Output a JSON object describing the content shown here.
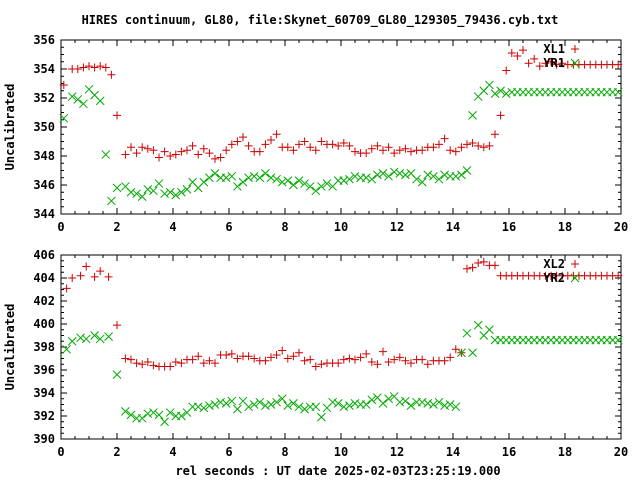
{
  "title": "HIRES continuum, GL80, file:Skynet_60709_GL80_129305_79436.cyb.txt",
  "xlabel": "rel seconds : UT date 2025-02-03T23:25:19.000",
  "colors": {
    "red": "#cc0000",
    "green": "#00aa00"
  },
  "chart_data": [
    {
      "type": "scatter",
      "ylabel": "Uncalibrated",
      "xlim": [
        0,
        20
      ],
      "ylim": [
        344,
        356
      ],
      "xticks": [
        0,
        2,
        4,
        6,
        8,
        10,
        12,
        14,
        16,
        18,
        20
      ],
      "yticks": [
        344,
        346,
        348,
        350,
        352,
        354,
        356
      ],
      "legend_position": "top-right",
      "series": [
        {
          "name": "XL1",
          "marker": "plus",
          "color": "red",
          "x": [
            0.2,
            0.4,
            0.6,
            0.8,
            1.0,
            1.2,
            1.4,
            1.6,
            1.8,
            2.0,
            2.2,
            2.4,
            2.6,
            2.8,
            3.0,
            3.2,
            3.4,
            3.6,
            3.8,
            4.0,
            4.2,
            4.4,
            4.6,
            4.8,
            5.0,
            5.2,
            5.4,
            5.6,
            5.8,
            6.0,
            6.2,
            6.4,
            6.6,
            6.8,
            7.0,
            7.2,
            7.4,
            7.6,
            7.8,
            8.0,
            8.2,
            8.4,
            8.6,
            8.8,
            9.0,
            9.2,
            9.4,
            9.6,
            9.8,
            10.0,
            10.2,
            10.4,
            10.6,
            10.8,
            11.0,
            11.2,
            11.4,
            11.6,
            11.8,
            12.0,
            12.2,
            12.4,
            12.6,
            12.8,
            13.0,
            13.2,
            13.4,
            13.6,
            13.8,
            14.0,
            14.2,
            14.4,
            14.6,
            14.8,
            15.0,
            15.2,
            15.4,
            15.6,
            15.8,
            16.0,
            16.2,
            16.4,
            16.6,
            16.8,
            17.0,
            17.2,
            17.4,
            17.6,
            17.8,
            18.0,
            18.2,
            18.4,
            18.6,
            18.8,
            19.0,
            19.2,
            19.4,
            19.6,
            19.8,
            20.0
          ],
          "y": [
            352.9,
            354.0,
            354.0,
            354.1,
            354.2,
            354.2,
            354.2,
            354.2,
            353.7,
            350.8,
            348.3,
            348.6,
            348.4,
            348.6,
            348.5,
            347.9,
            348.3,
            348.0,
            348.1,
            348.3,
            348.4,
            348.7,
            348.1,
            348.5,
            348.3,
            348.7,
            347.9,
            347.9,
            348.4,
            348.8,
            349.3,
            348.7,
            348.3,
            348.3,
            348.8,
            349.5,
            348.6,
            348.6,
            348.4,
            348.8,
            349.0,
            348.6,
            348.4,
            349.0,
            348.9,
            348.8,
            348.7,
            348.9,
            348.8,
            348.7,
            348.3,
            348.2,
            348.2,
            348.5,
            348.7,
            348.4,
            348.6,
            348.2,
            348.4,
            348.5,
            348.3,
            348.4,
            348.6,
            348.6,
            348.8,
            349.2,
            348.4,
            348.3,
            348.6,
            348.8,
            348.9,
            348.7,
            348.7,
            348.6,
            349.4,
            350.9,
            353.9,
            355.1,
            354.9,
            355.3,
            354.4,
            354.7,
            354.2,
            354.4,
            354.2,
            354.4,
            354.3,
            354.3,
            354.4,
            354.3,
            354.3,
            354.3,
            354.3,
            354.3,
            354.3,
            354.3,
            354.3,
            354.3,
            354.3,
            354.3
          ],
          "_note": ""
        }
      ]
    }
  ]
}
